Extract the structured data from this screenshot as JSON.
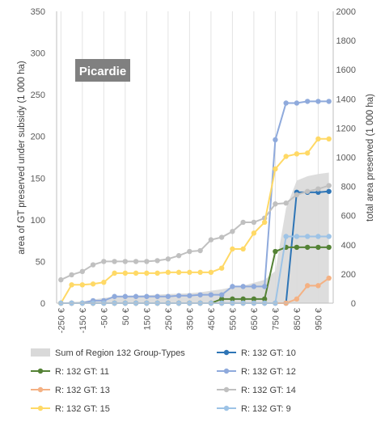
{
  "chart_data": {
    "type": "line",
    "annotation": "Picardie",
    "ylabel": "area of GT preserved under subsidy (1 000 ha)",
    "ylabel_right": "total area preserved (1 000 ha)",
    "ylim": [
      0,
      350
    ],
    "ylim_right": [
      0,
      2000
    ],
    "y_ticks": [
      0,
      50,
      100,
      150,
      200,
      250,
      300,
      350
    ],
    "y_right_ticks": [
      0,
      200,
      400,
      600,
      800,
      1000,
      1200,
      1400,
      1600,
      1800,
      2000
    ],
    "x": [
      -250,
      -200,
      -150,
      -100,
      -50,
      0,
      50,
      100,
      150,
      200,
      250,
      300,
      350,
      400,
      450,
      500,
      550,
      600,
      650,
      700,
      750,
      800,
      850,
      900,
      950,
      1000
    ],
    "x_tick_labels": [
      "-250 €",
      "-150 €",
      "-50 €",
      "50 €",
      "150 €",
      "250 €",
      "350 €",
      "450 €",
      "550 €",
      "650 €",
      "750 €",
      "850 €",
      "950 €"
    ],
    "x_tick_values": [
      -250,
      -150,
      -50,
      50,
      150,
      250,
      350,
      450,
      550,
      650,
      750,
      850,
      950
    ],
    "area_series": {
      "name": "Sum of Region 132 Group-Types",
      "axis": "right",
      "color": "#d9d9d9",
      "values": [
        5,
        8,
        12,
        25,
        35,
        45,
        50,
        52,
        55,
        58,
        62,
        65,
        68,
        75,
        85,
        95,
        110,
        120,
        140,
        160,
        220,
        650,
        840,
        870,
        885,
        895
      ]
    },
    "series": [
      {
        "name": "R: 132 GT: 10",
        "color": "#2e75b6",
        "values": [
          0,
          0,
          0,
          0,
          0,
          0,
          0,
          0,
          0,
          0,
          0,
          0,
          0,
          0,
          0,
          0,
          0,
          0,
          0,
          0,
          0,
          0,
          133,
          133,
          133,
          134
        ]
      },
      {
        "name": "R: 132 GT: 11",
        "color": "#548235",
        "values": [
          0,
          0,
          0,
          0,
          0,
          0,
          0,
          0,
          0,
          0,
          0,
          0,
          0,
          0,
          0,
          5,
          5,
          5,
          5,
          5,
          62,
          67,
          67,
          67,
          67,
          67
        ]
      },
      {
        "name": "R: 132 GT: 12",
        "color": "#8faadc",
        "values": [
          0,
          0,
          0,
          3,
          3,
          8,
          8,
          8,
          8,
          8,
          8,
          9,
          9,
          10,
          10,
          10,
          20,
          20,
          20,
          20,
          196,
          240,
          240,
          242,
          242,
          242
        ]
      },
      {
        "name": "R: 132 GT: 13",
        "color": "#f4b183",
        "values": [
          0,
          0,
          0,
          0,
          0,
          0,
          0,
          0,
          0,
          0,
          0,
          0,
          0,
          0,
          0,
          0,
          0,
          0,
          0,
          0,
          0,
          0,
          5,
          21,
          21,
          30
        ]
      },
      {
        "name": "R: 132 GT: 14",
        "color": "#c0c0c0",
        "values": [
          28,
          34,
          38,
          46,
          50,
          50,
          50,
          50,
          50,
          51,
          53,
          57,
          62,
          63,
          76,
          79,
          86,
          97,
          97,
          102,
          119,
          120,
          130,
          134,
          137,
          141
        ]
      },
      {
        "name": "R: 132 GT: 15",
        "color": "#ffd966",
        "values": [
          0,
          22,
          22,
          23,
          25,
          36,
          36,
          36,
          36,
          36,
          37,
          37,
          37,
          37,
          37,
          42,
          65,
          65,
          84,
          97,
          161,
          176,
          179,
          180,
          197,
          197
        ]
      },
      {
        "name": "R: 132 GT: 9",
        "color": "#9dc3e6",
        "values": [
          0,
          0,
          0,
          0,
          0,
          0,
          0,
          0,
          0,
          0,
          0,
          0,
          0,
          0,
          0,
          0,
          0,
          0,
          0,
          0,
          0,
          80,
          80,
          80,
          80,
          80
        ]
      }
    ],
    "legend": [
      "Sum of Region 132 Group-Types",
      "R: 132 GT: 10",
      "R: 132 GT: 11",
      "R: 132 GT: 12",
      "R: 132 GT: 13",
      "R: 132 GT: 14",
      "R: 132 GT: 15",
      "R: 132 GT: 9"
    ],
    "legend_position": "bottom",
    "grid": "vertical"
  }
}
